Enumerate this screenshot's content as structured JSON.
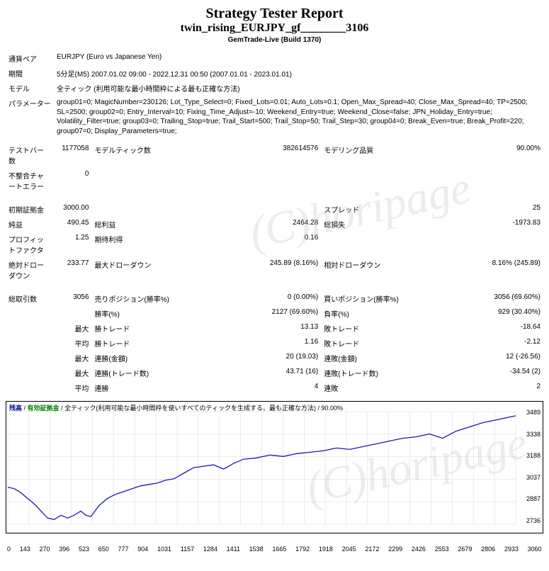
{
  "watermark": "(C)horipage",
  "header": {
    "title": "Strategy Tester Report",
    "subtitle": "twin_rising_EURJPY_gf________3106",
    "server": "GemTrade-Live (Build 1370)"
  },
  "info": {
    "symbol_label": "通貨ペア",
    "symbol_value": "EURJPY (Euro vs Japanese Yen)",
    "period_label": "期間",
    "period_value": "5分足(M5) 2007.01.02 09:00 - 2022.12.31 00:50 (2007.01.01 - 2023.01.01)",
    "model_label": "モデル",
    "model_value": "全ティック (利用可能な最小時間枠による最も正確な方法)",
    "param_label": "パラメーター",
    "param_value": "group01=0; MagicNumber=230126; Lot_Type_Select=0; Fixed_Lots=0.01; Auto_Lots=0.1; Open_Max_Spread=40; Close_Max_Spread=40; TP=2500; SL=2500; group02=0; Entry_Interval=10; Fixing_Time_Adjust=-10; Weekend_Entry=true; Weekend_Close=false; JPN_Holiday_Entry=true; Volatility_Filter=true; group03=0; Trailing_Stop=true; Trail_Start=500; Trail_Stop=50; Trail_Step=30; group04=0; Break_Even=true; Break_Profit=220; group07=0; Display_Parameters=true;"
  },
  "stats": {
    "bars_label": "テストバー数",
    "bars_val": "1177058",
    "ticks_label": "モデルティック数",
    "ticks_val": "382614576",
    "quality_label": "モデリング品質",
    "quality_val": "90.00%",
    "mismatch_label": "不整合チャートエラー",
    "mismatch_val": "0",
    "deposit_label": "初期証拠金",
    "deposit_val": "3000.00",
    "spread_label": "スプレッド",
    "spread_val": "25",
    "netprofit_label": "純益",
    "netprofit_val": "490.45",
    "grossprofit_label": "総利益",
    "grossprofit_val": "2464.28",
    "grossloss_label": "総損失",
    "grossloss_val": "-1973.83",
    "pf_label": "プロフィットファクタ",
    "pf_val": "1.25",
    "expected_label": "期待利得",
    "expected_val": "0.16",
    "absdd_label": "絶対ドローダウン",
    "absdd_val": "233.77",
    "maxdd_label": "最大ドローダウン",
    "maxdd_val": "245.89 (8.16%)",
    "reldd_label": "相対ドローダウン",
    "reldd_val": "8.16% (245.89)",
    "totaltrades_label": "総取引数",
    "totaltrades_val": "3056",
    "short_label": "売りポジション(勝率%)",
    "short_val": "0 (0.00%)",
    "long_label": "買いポジション(勝率%)",
    "long_val": "3056 (69.60%)",
    "winrate_label": "勝率(%)",
    "winrate_val": "2127 (69.60%)",
    "lossrate_label": "負率(%)",
    "lossrate_val": "929 (30.40%)",
    "row_largest": "最大",
    "largest_win_label": "勝トレード",
    "largest_win_val": "13.13",
    "largest_loss_label": "敗トレード",
    "largest_loss_val": "-18.64",
    "row_avg": "平均",
    "avg_win_label": "勝トレード",
    "avg_win_val": "1.16",
    "avg_loss_label": "敗トレード",
    "avg_loss_val": "-2.12",
    "row_max": "最大",
    "conswin_amt_label": "連勝(金額)",
    "conswin_amt_val": "20 (19.03)",
    "consloss_amt_label": "連敗(金額)",
    "consloss_amt_val": "12 (-26.56)",
    "row_max2": "最大",
    "conswin_cnt_label": "連勝(トレード数)",
    "conswin_cnt_val": "43.71 (16)",
    "consloss_cnt_label": "連敗(トレード数)",
    "consloss_cnt_val": "-34.54 (2)",
    "row_avg2": "平均",
    "avg_conswin_label": "連勝",
    "avg_conswin_val": "4",
    "avg_consloss_label": "連敗",
    "avg_consloss_val": "2"
  },
  "chart": {
    "legend_balance": "残高",
    "legend_lots": "有効証拠金",
    "legend_rest": " / 全ティック(利用可能な最小時間枠を使いすべてのティックを生成する、最も正確な方法) / 90.00%",
    "xticks": [
      "0",
      "143",
      "270",
      "396",
      "523",
      "650",
      "777",
      "904",
      "1031",
      "1157",
      "1284",
      "1411",
      "1538",
      "1665",
      "1792",
      "1918",
      "2045",
      "2172",
      "2299",
      "2426",
      "2553",
      "2679",
      "2806",
      "2933",
      "3060"
    ],
    "yticks": [
      "3489",
      "3338",
      "3188",
      "3037",
      "2887",
      "2736"
    ],
    "line_color": "#1818c0",
    "grid_color": "#d8d8d8",
    "ymin": 2736,
    "ymax": 3540,
    "points": [
      [
        0,
        3000
      ],
      [
        40,
        2990
      ],
      [
        80,
        2960
      ],
      [
        120,
        2920
      ],
      [
        160,
        2880
      ],
      [
        200,
        2830
      ],
      [
        240,
        2780
      ],
      [
        280,
        2770
      ],
      [
        320,
        2800
      ],
      [
        360,
        2780
      ],
      [
        400,
        2800
      ],
      [
        440,
        2830
      ],
      [
        470,
        2800
      ],
      [
        500,
        2790
      ],
      [
        550,
        2870
      ],
      [
        600,
        2920
      ],
      [
        650,
        2950
      ],
      [
        700,
        2970
      ],
      [
        750,
        2990
      ],
      [
        800,
        3010
      ],
      [
        850,
        3020
      ],
      [
        900,
        3030
      ],
      [
        950,
        3050
      ],
      [
        1000,
        3060
      ],
      [
        1060,
        3100
      ],
      [
        1120,
        3140
      ],
      [
        1180,
        3150
      ],
      [
        1240,
        3160
      ],
      [
        1300,
        3130
      ],
      [
        1360,
        3170
      ],
      [
        1420,
        3200
      ],
      [
        1500,
        3210
      ],
      [
        1580,
        3230
      ],
      [
        1660,
        3220
      ],
      [
        1740,
        3240
      ],
      [
        1820,
        3250
      ],
      [
        1900,
        3260
      ],
      [
        1980,
        3280
      ],
      [
        2060,
        3270
      ],
      [
        2140,
        3290
      ],
      [
        2220,
        3310
      ],
      [
        2300,
        3330
      ],
      [
        2380,
        3350
      ],
      [
        2460,
        3360
      ],
      [
        2540,
        3380
      ],
      [
        2620,
        3350
      ],
      [
        2700,
        3400
      ],
      [
        2780,
        3430
      ],
      [
        2860,
        3460
      ],
      [
        2940,
        3480
      ],
      [
        3020,
        3500
      ],
      [
        3060,
        3510
      ]
    ],
    "xmax": 3060
  }
}
